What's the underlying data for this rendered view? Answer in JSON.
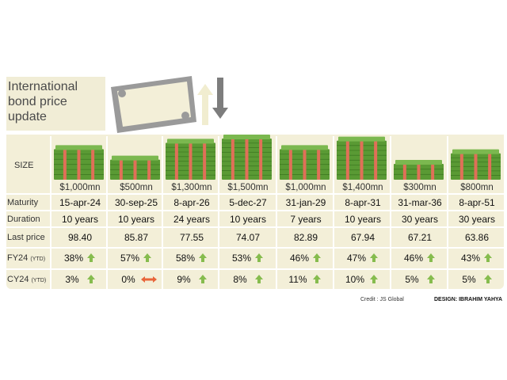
{
  "title": "International\nbond price\nupdate",
  "row_labels": {
    "size": "SIZE",
    "maturity": "Maturity",
    "duration": "Duration",
    "last_price": "Last price",
    "fy24": "FY24",
    "fy24_note": "(YTD)",
    "cy24": "CY24",
    "cy24_note": "(YTD)"
  },
  "credit": "Credit : JS Global",
  "design": "DESIGN: IBRAHIM YAHYA",
  "colors": {
    "panel": "#f3efd8",
    "cash_green": "#5a9a34",
    "cash_band": "#e07058",
    "up_arrow": "#86bc4e",
    "flat_arrow": "#e8653a"
  },
  "chart_data": {
    "type": "table",
    "columns": [
      "$1,000mn",
      "$500mn",
      "$1,300mn",
      "$1,500mn",
      "$1,000mn",
      "$1,400mn",
      "$300mn",
      "$800mn"
    ],
    "size_mn": [
      1000,
      500,
      1300,
      1500,
      1000,
      1400,
      300,
      800
    ],
    "maturity": [
      "15-apr-24",
      "30-sep-25",
      "8-apr-26",
      "5-dec-27",
      "31-jan-29",
      "8-apr-31",
      "31-mar-36",
      "8-apr-51"
    ],
    "duration": [
      "10 years",
      "10 years",
      "24 years",
      "10 years",
      "7 years",
      "10 years",
      "30 years",
      "30 years"
    ],
    "last_price": [
      "98.40",
      "85.87",
      "77.55",
      "74.07",
      "82.89",
      "67.94",
      "67.21",
      "63.86"
    ],
    "fy24_ytd": [
      "38%",
      "57%",
      "58%",
      "53%",
      "46%",
      "47%",
      "46%",
      "43%"
    ],
    "fy24_dir": [
      "up",
      "up",
      "up",
      "up",
      "up",
      "up",
      "up",
      "up"
    ],
    "cy24_ytd": [
      "3%",
      "0%",
      "9%",
      "8%",
      "11%",
      "10%",
      "5%",
      "5%"
    ],
    "cy24_dir": [
      "up",
      "flat",
      "up",
      "up",
      "up",
      "up",
      "up",
      "up"
    ]
  }
}
